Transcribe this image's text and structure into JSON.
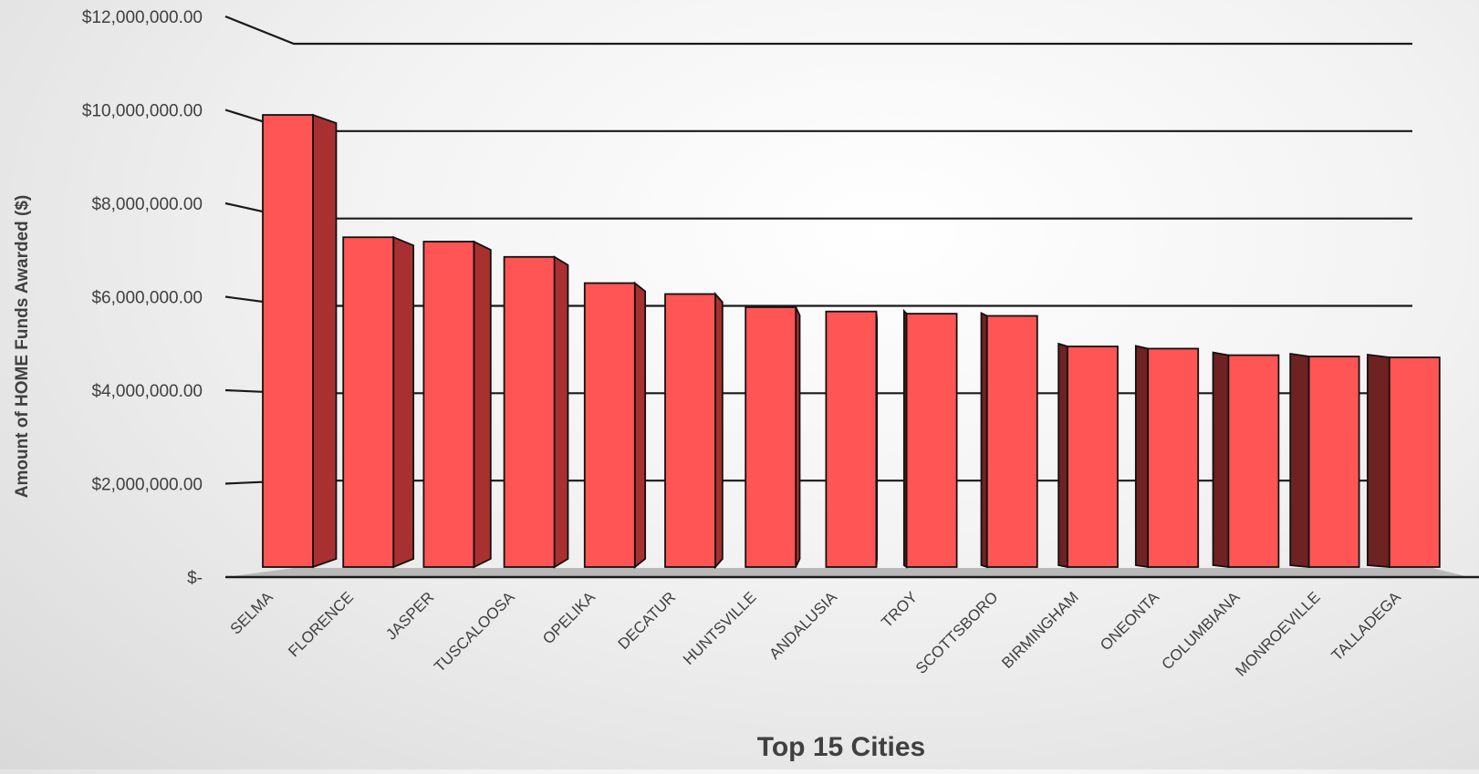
{
  "chart_data": {
    "type": "bar",
    "title": "",
    "xlabel": "Top 15 Cities",
    "ylabel": "Amount of HOME Funds Awarded ($)",
    "categories": [
      "SELMA",
      "FLORENCE",
      "JASPER",
      "TUSCALOOSA",
      "OPELIKA",
      "DECATUR",
      "HUNTSVILLE",
      "ANDALUSIA",
      "TROY",
      "SCOTTSBORO",
      "BIRMINGHAM",
      "ONEONTA",
      "COLUMBIANA",
      "MONROEVILLE",
      "TALLADEGA"
    ],
    "values": [
      10350000,
      7550000,
      7450000,
      7100000,
      6500000,
      6250000,
      5950000,
      5850000,
      5800000,
      5750000,
      5050000,
      5000000,
      4850000,
      4820000,
      4800000
    ],
    "ylim": [
      0,
      12000000
    ],
    "yticks": [
      0,
      2000000,
      4000000,
      6000000,
      8000000,
      10000000,
      12000000
    ],
    "ytick_labels": [
      "$-",
      "$2,000,000.00",
      "$4,000,000.00",
      "$6,000,000.00",
      "$8,000,000.00",
      "$10,000,000.00",
      "$12,000,000.00"
    ],
    "grid": true,
    "legend": "none",
    "bar_color": "#ff5555"
  }
}
